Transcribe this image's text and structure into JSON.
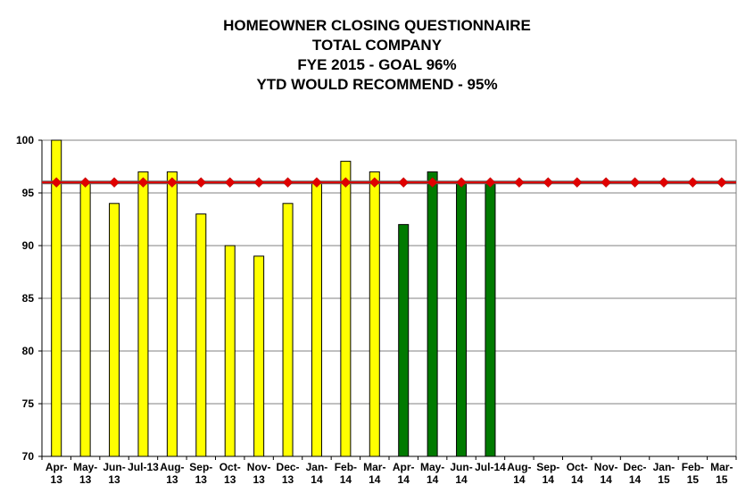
{
  "chart_data": {
    "type": "bar",
    "title_lines": [
      "HOMEOWNER CLOSING QUESTIONNAIRE",
      "TOTAL COMPANY",
      "FYE 2015 - GOAL 96%",
      "YTD WOULD RECOMMEND - 95%"
    ],
    "categories": [
      [
        "Apr-",
        "13"
      ],
      [
        "May-",
        "13"
      ],
      [
        "Jun-",
        "13"
      ],
      [
        "Jul-13",
        ""
      ],
      [
        "Aug-",
        "13"
      ],
      [
        "Sep-",
        "13"
      ],
      [
        "Oct-",
        "13"
      ],
      [
        "Nov-",
        "13"
      ],
      [
        "Dec-",
        "13"
      ],
      [
        "Jan-",
        "14"
      ],
      [
        "Feb-",
        "14"
      ],
      [
        "Mar-",
        "14"
      ],
      [
        "Apr-",
        "14"
      ],
      [
        "May-",
        "14"
      ],
      [
        "Jun-",
        "14"
      ],
      [
        "Jul-14",
        ""
      ],
      [
        "Aug-",
        "14"
      ],
      [
        "Sep-",
        "14"
      ],
      [
        "Oct-",
        "14"
      ],
      [
        "Nov-",
        "14"
      ],
      [
        "Dec-",
        "14"
      ],
      [
        "Jan-",
        "15"
      ],
      [
        "Feb-",
        "15"
      ],
      [
        "Mar-",
        "15"
      ]
    ],
    "series": [
      {
        "color": "#ffff00",
        "values": [
          100,
          96,
          94,
          97,
          97,
          93,
          90,
          89,
          94,
          96,
          98,
          97,
          null,
          null,
          null,
          null,
          null,
          null,
          null,
          null,
          null,
          null,
          null,
          null
        ]
      },
      {
        "color": "#007a00",
        "values": [
          null,
          null,
          null,
          null,
          null,
          null,
          null,
          null,
          null,
          null,
          null,
          null,
          92,
          97,
          96,
          96,
          null,
          null,
          null,
          null,
          null,
          null,
          null,
          null
        ]
      },
      {
        "type": "line",
        "color": "#e00000",
        "marker": "diamond",
        "values": [
          96,
          96,
          96,
          96,
          96,
          96,
          96,
          96,
          96,
          96,
          96,
          96,
          96,
          96,
          96,
          96,
          96,
          96,
          96,
          96,
          96,
          96,
          96,
          96
        ]
      }
    ],
    "ylim": [
      70,
      100
    ],
    "yticks": [
      70,
      75,
      80,
      85,
      90,
      95,
      100
    ],
    "grid": true,
    "legend": "none"
  }
}
